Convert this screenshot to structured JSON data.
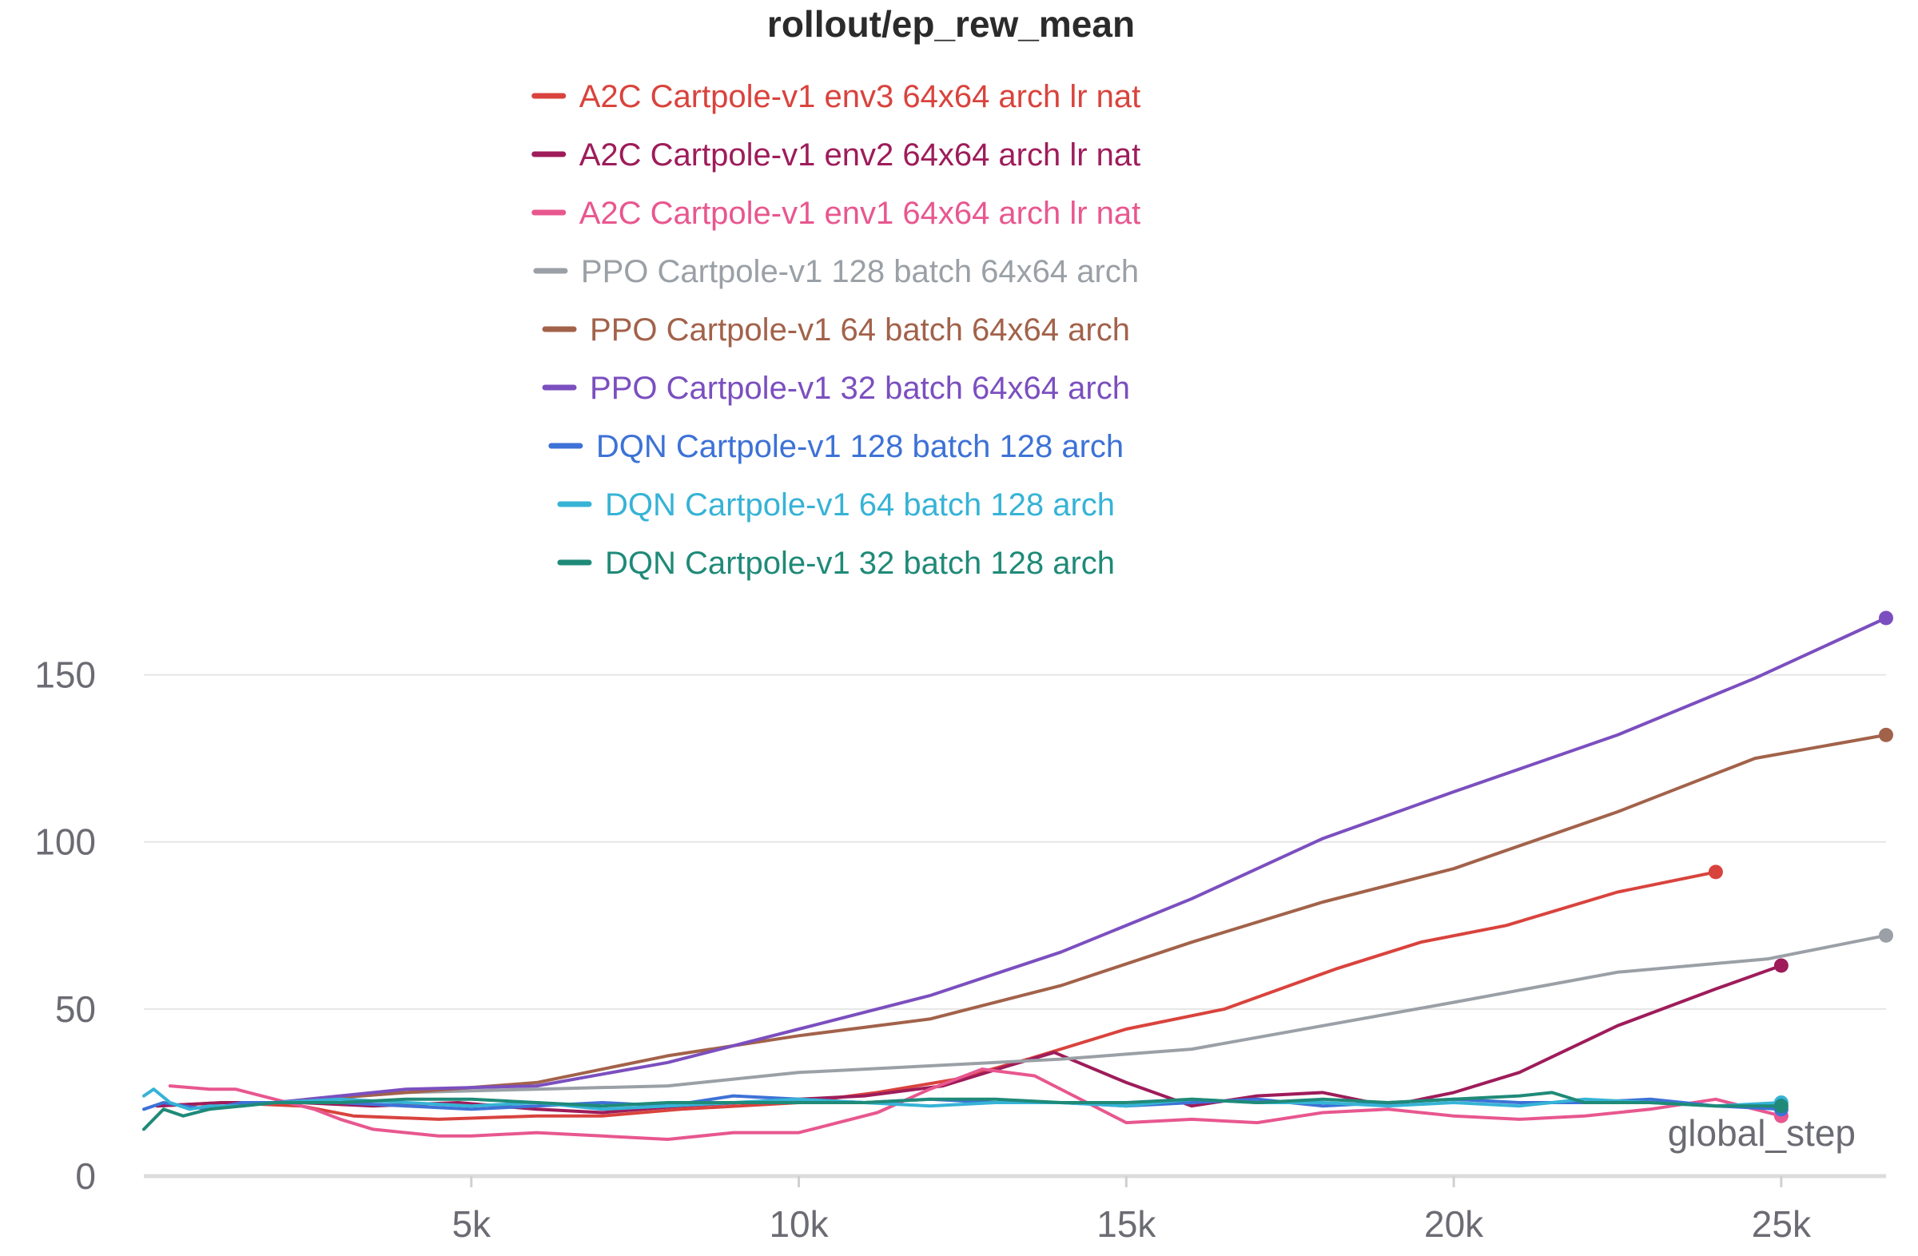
{
  "chart_data": {
    "type": "line",
    "title": "rollout/ep_rew_mean",
    "xlabel": "global_step",
    "ylabel": "",
    "xlim": [
      0,
      26600
    ],
    "ylim": [
      0,
      175
    ],
    "xticks": [
      5000,
      10000,
      15000,
      20000,
      25000
    ],
    "xtick_labels": [
      "5k",
      "10k",
      "15k",
      "20k",
      "25k"
    ],
    "yticks": [
      0,
      50,
      100,
      150
    ],
    "ytick_labels": [
      "0",
      "50",
      "100",
      "150"
    ],
    "grid": true,
    "legend_position": "top",
    "series": [
      {
        "name": "A2C Cartpole-v1 env3 64x64 arch lr nat",
        "color": "#d9433d",
        "x": [
          200,
          1200,
          2400,
          3200,
          4500,
          6000,
          7000,
          8200,
          10000,
          11200,
          12400,
          13500,
          15000,
          16500,
          18200,
          19500,
          20800,
          22500,
          24000
        ],
        "y": [
          21,
          22,
          21,
          18,
          17,
          18,
          18,
          20,
          22,
          25,
          29,
          35,
          44,
          50,
          62,
          70,
          75,
          85,
          91
        ]
      },
      {
        "name": "A2C Cartpole-v1 env2 64x64 arch lr nat",
        "color": "#9e1c5a",
        "x": [
          200,
          1200,
          2400,
          3500,
          4800,
          6000,
          7000,
          8200,
          10000,
          11000,
          12200,
          13200,
          13900,
          15000,
          16000,
          17000,
          18000,
          19000,
          20000,
          21000,
          22500,
          24000,
          25000
        ],
        "y": [
          21,
          22,
          22,
          21,
          22,
          20,
          19,
          21,
          23,
          24,
          27,
          33,
          37,
          28,
          21,
          24,
          25,
          21,
          25,
          31,
          45,
          56,
          63
        ]
      },
      {
        "name": "A2C Cartpole-v1 env1 64x64 arch lr nat",
        "color": "#e8578f",
        "x": [
          400,
          1000,
          1400,
          2000,
          2600,
          3000,
          3500,
          4500,
          5000,
          6000,
          7000,
          8000,
          9000,
          10000,
          11200,
          12000,
          12800,
          13600,
          14400,
          15000,
          16000,
          17000,
          18000,
          19000,
          20000,
          21000,
          22000,
          23000,
          24000,
          25000
        ],
        "y": [
          27,
          26,
          26,
          23,
          20,
          17,
          14,
          12,
          12,
          13,
          12,
          11,
          13,
          13,
          19,
          26,
          32,
          30,
          22,
          16,
          17,
          16,
          19,
          20,
          18,
          17,
          18,
          20,
          23,
          18
        ]
      },
      {
        "name": "PPO Cartpole-v1 128 batch 64x64 arch",
        "color": "#9aa0a6",
        "x": [
          2000,
          4000,
          6000,
          8000,
          10000,
          12000,
          14000,
          16000,
          18000,
          20000,
          22500,
          24800,
          26600
        ],
        "y": [
          22,
          25,
          26,
          27,
          31,
          33,
          35,
          38,
          45,
          52,
          61,
          65,
          72
        ]
      },
      {
        "name": "PPO Cartpole-v1 64 batch 64x64 arch",
        "color": "#a2624a",
        "x": [
          2000,
          4000,
          6000,
          8000,
          10000,
          12000,
          14000,
          16000,
          18000,
          20000,
          22500,
          24600,
          26600
        ],
        "y": [
          22,
          25,
          28,
          36,
          42,
          47,
          57,
          70,
          82,
          92,
          109,
          125,
          132
        ]
      },
      {
        "name": "PPO Cartpole-v1 32 batch 64x64 arch",
        "color": "#7b4fbf",
        "x": [
          2000,
          4000,
          6000,
          8000,
          10000,
          12000,
          14000,
          16000,
          18000,
          20000,
          22500,
          24600,
          26600
        ],
        "y": [
          22,
          26,
          27,
          34,
          44,
          54,
          67,
          83,
          101,
          115,
          132,
          149,
          167
        ]
      },
      {
        "name": "DQN Cartpole-v1 128 batch 128 arch",
        "color": "#3d72d6",
        "x": [
          0,
          300,
          600,
          1000,
          1500,
          2000,
          3000,
          4000,
          5000,
          6000,
          7000,
          8000,
          9000,
          10000,
          11000,
          12000,
          13000,
          14000,
          15000,
          16000,
          17000,
          18000,
          19000,
          20000,
          21000,
          22000,
          23000,
          24000,
          25000
        ],
        "y": [
          20,
          22,
          21,
          20,
          22,
          22,
          22,
          21,
          20,
          21,
          22,
          21,
          24,
          23,
          22,
          23,
          22,
          22,
          21,
          22,
          23,
          21,
          22,
          23,
          22,
          22,
          23,
          21,
          20
        ]
      },
      {
        "name": "DQN Cartpole-v1 64 batch 128 arch",
        "color": "#36b3d6",
        "x": [
          0,
          150,
          400,
          700,
          1000,
          1500,
          2000,
          3000,
          4000,
          5000,
          6000,
          7000,
          8000,
          9000,
          10000,
          11000,
          12000,
          13000,
          14000,
          15000,
          16000,
          17000,
          18000,
          19000,
          20000,
          21000,
          22000,
          23000,
          24000,
          25000
        ],
        "y": [
          24,
          26,
          22,
          20,
          21,
          21,
          22,
          23,
          22,
          21,
          22,
          20,
          21,
          22,
          23,
          22,
          21,
          22,
          22,
          21,
          23,
          22,
          22,
          21,
          22,
          21,
          23,
          22,
          21,
          22
        ]
      },
      {
        "name": "DQN Cartpole-v1 32 batch 128 arch",
        "color": "#1f8a78",
        "x": [
          0,
          300,
          600,
          1000,
          1500,
          2000,
          3000,
          4000,
          5000,
          6000,
          7000,
          8000,
          9000,
          10000,
          11000,
          12000,
          13000,
          14000,
          15000,
          16000,
          17000,
          18000,
          19000,
          20000,
          21000,
          21500,
          22000,
          23000,
          24000,
          25000
        ],
        "y": [
          14,
          20,
          18,
          20,
          21,
          22,
          22,
          23,
          23,
          22,
          21,
          22,
          22,
          22,
          22,
          23,
          23,
          22,
          22,
          23,
          22,
          23,
          22,
          23,
          24,
          25,
          22,
          22,
          21,
          21
        ]
      }
    ]
  }
}
